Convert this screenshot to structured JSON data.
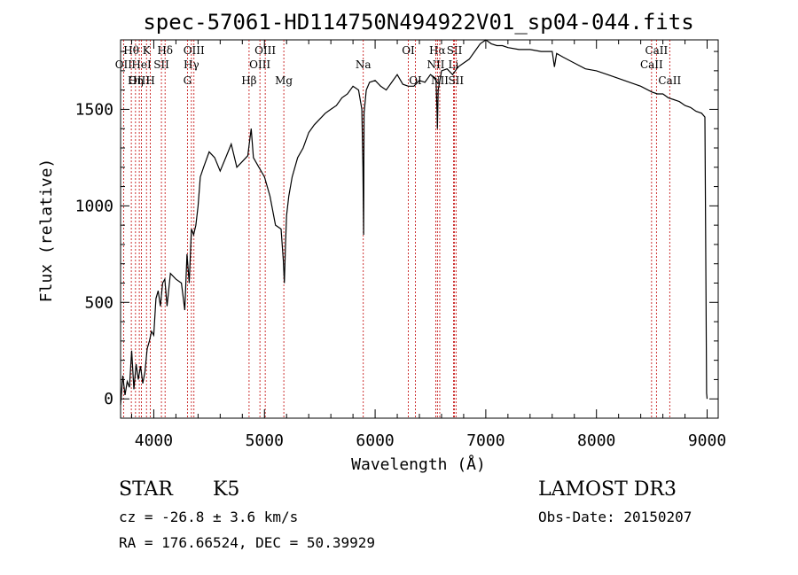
{
  "chart_data": {
    "type": "line",
    "title": "spec-57061-HD114750N494922V01_sp04-044.fits",
    "xlabel": "Wavelength (Å)",
    "ylabel": "Flux (relative)",
    "xlim": [
      3700,
      9100
    ],
    "ylim": [
      -100,
      1860
    ],
    "xticks": [
      4000,
      5000,
      6000,
      7000,
      8000,
      9000
    ],
    "yticks": [
      0,
      500,
      1000,
      1500
    ],
    "series": [
      {
        "name": "spectrum",
        "x": [
          3700,
          3720,
          3740,
          3760,
          3780,
          3800,
          3820,
          3840,
          3860,
          3880,
          3900,
          3920,
          3940,
          3960,
          3980,
          4000,
          4020,
          4040,
          4060,
          4080,
          4100,
          4120,
          4150,
          4200,
          4250,
          4280,
          4300,
          4320,
          4340,
          4360,
          4380,
          4400,
          4420,
          4450,
          4500,
          4550,
          4600,
          4650,
          4700,
          4750,
          4800,
          4850,
          4860,
          4880,
          4900,
          4950,
          5000,
          5050,
          5100,
          5150,
          5170,
          5180,
          5190,
          5200,
          5220,
          5250,
          5300,
          5350,
          5400,
          5450,
          5500,
          5550,
          5600,
          5650,
          5700,
          5750,
          5800,
          5850,
          5880,
          5890,
          5896,
          5900,
          5920,
          5950,
          6000,
          6050,
          6100,
          6150,
          6200,
          6250,
          6300,
          6350,
          6400,
          6450,
          6500,
          6550,
          6560,
          6563,
          6570,
          6600,
          6650,
          6700,
          6750,
          6800,
          6850,
          6900,
          6950,
          7000,
          7050,
          7100,
          7150,
          7200,
          7300,
          7400,
          7500,
          7600,
          7620,
          7640,
          7700,
          7800,
          7900,
          8000,
          8100,
          8200,
          8300,
          8400,
          8500,
          8550,
          8600,
          8650,
          8700,
          8750,
          8800,
          8850,
          8900,
          8950,
          8980,
          8990,
          8995,
          9000
        ],
        "values": [
          -30,
          120,
          20,
          90,
          60,
          250,
          50,
          180,
          100,
          170,
          80,
          140,
          260,
          300,
          350,
          330,
          520,
          560,
          480,
          600,
          620,
          480,
          650,
          620,
          600,
          460,
          750,
          600,
          880,
          850,
          900,
          1000,
          1150,
          1200,
          1280,
          1250,
          1180,
          1250,
          1320,
          1200,
          1230,
          1260,
          1310,
          1400,
          1250,
          1200,
          1150,
          1050,
          900,
          880,
          720,
          600,
          800,
          950,
          1050,
          1150,
          1250,
          1300,
          1380,
          1420,
          1450,
          1480,
          1500,
          1520,
          1560,
          1580,
          1620,
          1600,
          1500,
          1200,
          850,
          1480,
          1600,
          1640,
          1650,
          1620,
          1600,
          1640,
          1680,
          1630,
          1620,
          1620,
          1650,
          1640,
          1680,
          1660,
          1480,
          1400,
          1600,
          1700,
          1710,
          1680,
          1720,
          1740,
          1760,
          1800,
          1840,
          1870,
          1840,
          1830,
          1830,
          1820,
          1810,
          1810,
          1800,
          1800,
          1720,
          1790,
          1770,
          1740,
          1710,
          1700,
          1680,
          1660,
          1640,
          1620,
          1590,
          1580,
          1580,
          1560,
          1550,
          1540,
          1520,
          1510,
          1490,
          1480,
          1460,
          500,
          30,
          0
        ]
      }
    ],
    "line_markers": [
      {
        "label": "Hθ",
        "wavelength": 3797,
        "row": 1
      },
      {
        "label": "OII",
        "wavelength": 3727,
        "row": 2
      },
      {
        "label": "OIII",
        "wavelength": 3869,
        "row": 3
      },
      {
        "label": "K",
        "wavelength": 3934,
        "row": 1
      },
      {
        "label": "HeI",
        "wavelength": 3889,
        "row": 2
      },
      {
        "label": "Hη",
        "wavelength": 3835,
        "row": 3
      },
      {
        "label": "H",
        "wavelength": 3969,
        "row": 3
      },
      {
        "label": "Hδ",
        "wavelength": 4102,
        "row": 1
      },
      {
        "label": "SII",
        "wavelength": 4069,
        "row": 2
      },
      {
        "label": "OIII",
        "wavelength": 4363,
        "row": 1
      },
      {
        "label": "Hγ",
        "wavelength": 4340,
        "row": 2
      },
      {
        "label": "G",
        "wavelength": 4304,
        "row": 3
      },
      {
        "label": "Hβ",
        "wavelength": 4861,
        "row": 3
      },
      {
        "label": "OIII",
        "wavelength": 5007,
        "row": 1
      },
      {
        "label": "OIII",
        "wavelength": 4959,
        "row": 2
      },
      {
        "label": "Mg",
        "wavelength": 5175,
        "row": 3
      },
      {
        "label": "Na",
        "wavelength": 5893,
        "row": 2
      },
      {
        "label": "OI",
        "wavelength": 6300,
        "row": 1
      },
      {
        "label": "OI",
        "wavelength": 6364,
        "row": 3
      },
      {
        "label": "Hα",
        "wavelength": 6563,
        "row": 1
      },
      {
        "label": "NII",
        "wavelength": 6548,
        "row": 2
      },
      {
        "label": "NII",
        "wavelength": 6584,
        "row": 3
      },
      {
        "label": "SII",
        "wavelength": 6717,
        "row": 1
      },
      {
        "label": "Li",
        "wavelength": 6708,
        "row": 2
      },
      {
        "label": "SII",
        "wavelength": 6731,
        "row": 3
      },
      {
        "label": "CaII",
        "wavelength": 8542,
        "row": 1
      },
      {
        "label": "CaII",
        "wavelength": 8498,
        "row": 2
      },
      {
        "label": "CaII",
        "wavelength": 8662,
        "row": 3
      }
    ],
    "marker_color": "#c00000"
  },
  "info": {
    "object_class": "STAR",
    "subclass": "K5",
    "survey": "LAMOST DR3",
    "cz": "cz = -26.8 ± 3.6 km/s",
    "obs_date": "Obs-Date: 20150207",
    "coords": "RA = 176.66524, DEC =  50.39929"
  }
}
